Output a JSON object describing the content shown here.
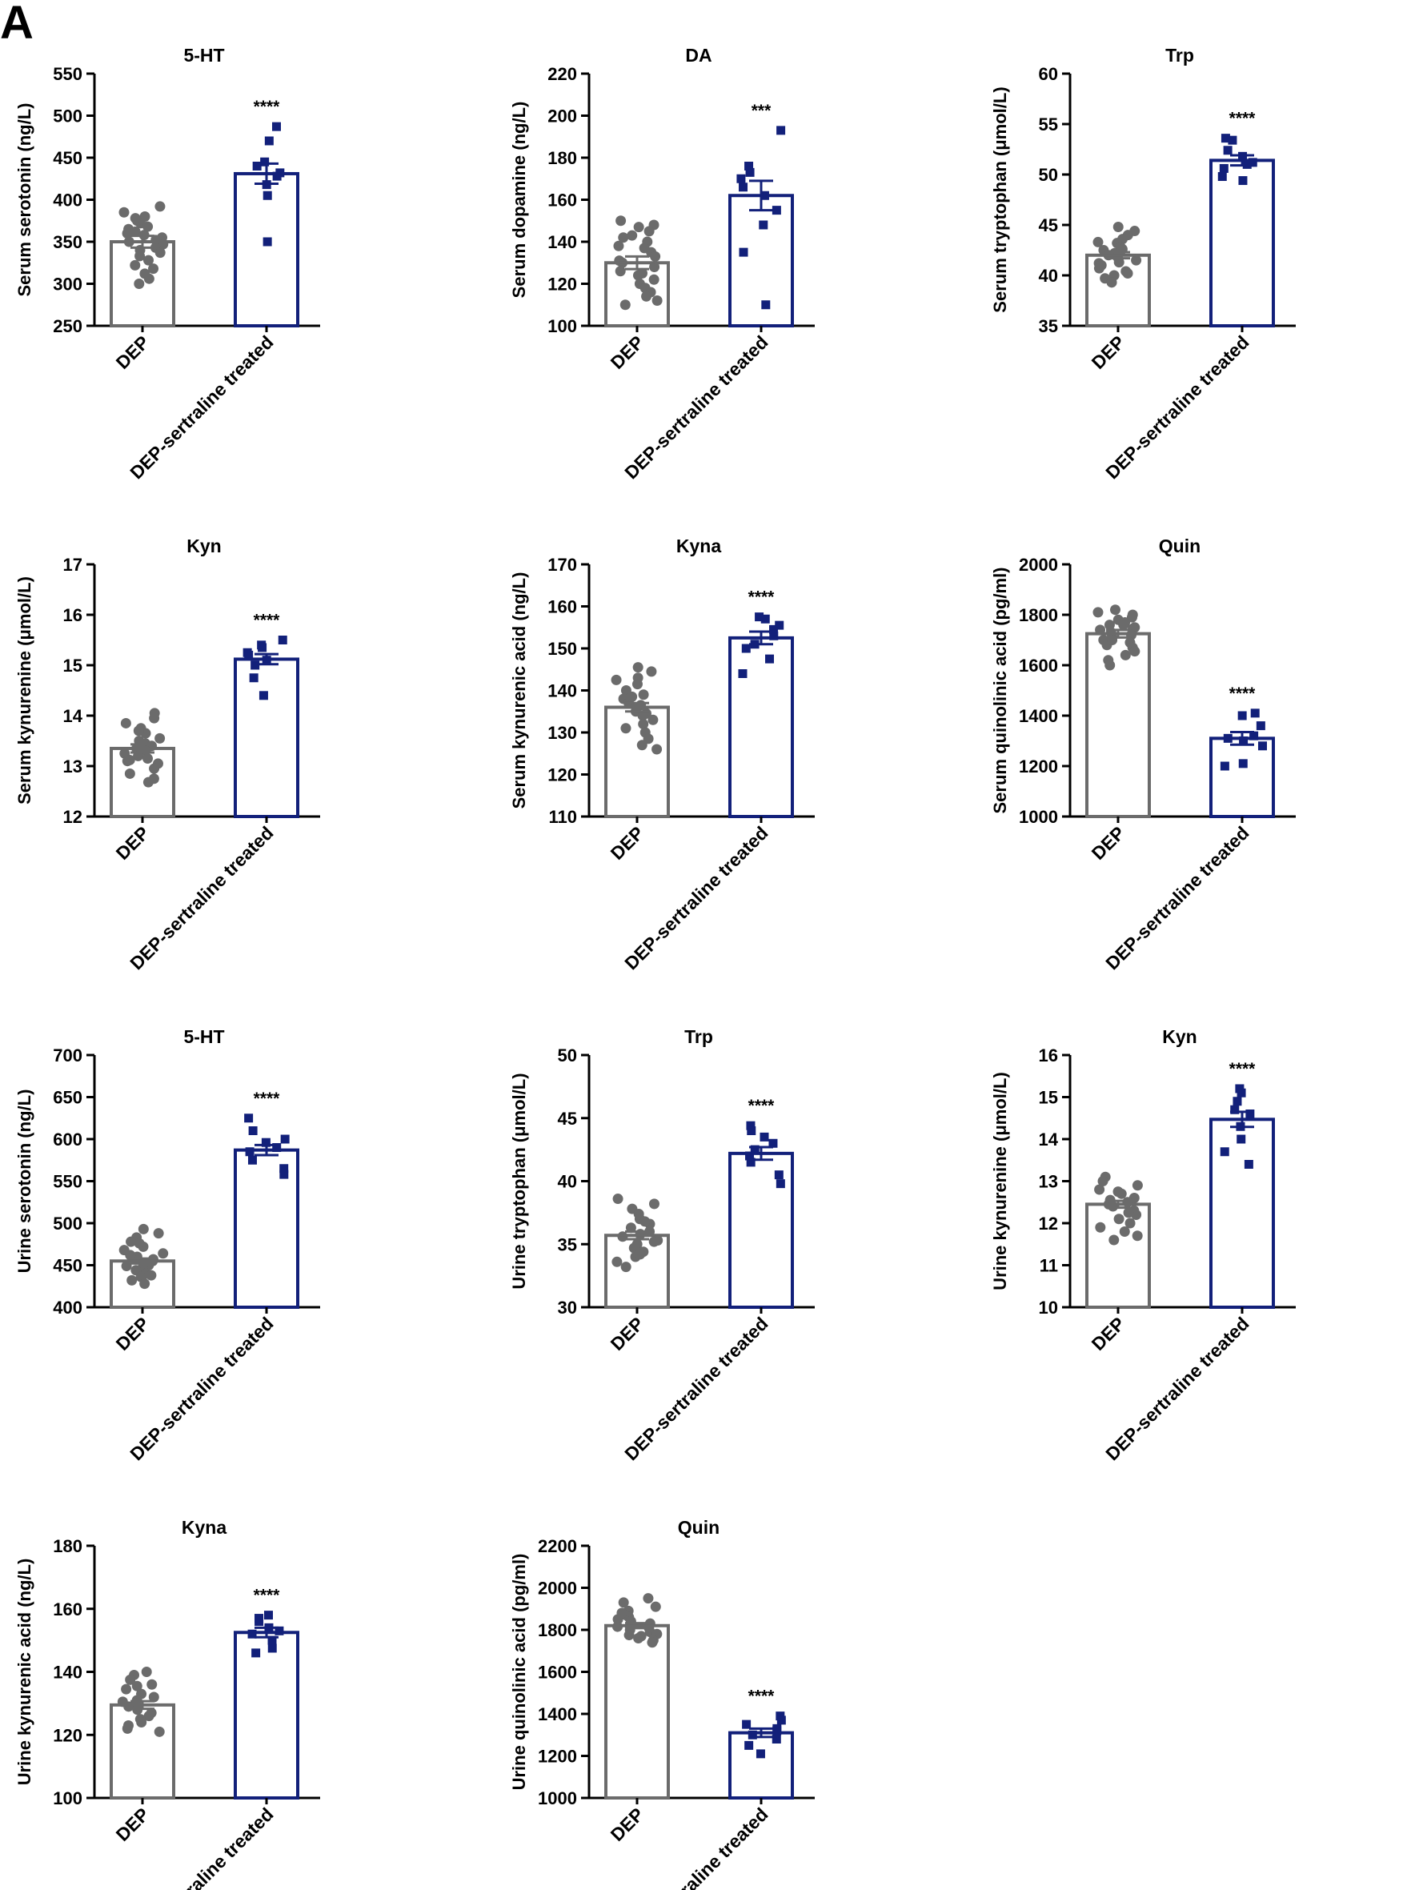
{
  "figure": {
    "panel_letter": "A",
    "colors": {
      "dep": "#6b6b6b",
      "treated": "#12207a",
      "axis": "#000000"
    }
  },
  "chart_data": [
    {
      "type": "bar",
      "title": "5-HT",
      "ylabel": "Serum serotonin (ng/L)",
      "categories": [
        "DEP",
        "DEP-sertraline treated"
      ],
      "ylim": [
        250,
        550
      ],
      "yticks": [
        250,
        300,
        350,
        400,
        450,
        500,
        550
      ],
      "means": [
        350,
        431
      ],
      "sem": [
        7,
        12
      ],
      "significance": "****",
      "points": [
        [
          392,
          385,
          380,
          375,
          372,
          368,
          365,
          362,
          358,
          355,
          352,
          350,
          347,
          343,
          340,
          337,
          333,
          328,
          322,
          318,
          312,
          306,
          300,
          360,
          378
        ],
        [
          487,
          470,
          445,
          440,
          432,
          428,
          418,
          405,
          350
        ]
      ]
    },
    {
      "type": "bar",
      "title": "DA",
      "ylabel": "Serum dopamine (ng/L)",
      "categories": [
        "DEP",
        "DEP-sertraline treated"
      ],
      "ylim": [
        100,
        220
      ],
      "yticks": [
        100,
        120,
        140,
        160,
        180,
        200,
        220
      ],
      "means": [
        130,
        162
      ],
      "sem": [
        3,
        7
      ],
      "significance": "***",
      "points": [
        [
          150,
          148,
          147,
          145,
          143,
          140,
          138,
          135,
          133,
          130,
          128,
          126,
          124,
          122,
          120,
          118,
          116,
          114,
          112,
          110,
          137,
          142,
          131,
          125
        ],
        [
          193,
          176,
          173,
          170,
          166,
          162,
          155,
          148,
          135,
          110
        ]
      ]
    },
    {
      "type": "bar",
      "title": "Trp",
      "ylabel": "Serum tryptophan (μmol/L)",
      "categories": [
        "DEP",
        "DEP-sertraline treated"
      ],
      "ylim": [
        35,
        60
      ],
      "yticks": [
        35,
        40,
        45,
        50,
        55,
        60
      ],
      "means": [
        42,
        51.4
      ],
      "sem": [
        0.3,
        0.5
      ],
      "significance": "****",
      "points": [
        [
          44.8,
          44.4,
          44,
          43.6,
          43.2,
          42.8,
          42.5,
          42.2,
          42,
          41.8,
          41.5,
          41.2,
          41,
          40.7,
          40.4,
          40,
          39.7,
          39.3,
          43.3,
          42.6,
          41.3,
          40.2
        ],
        [
          53.6,
          53.4,
          52.4,
          51.8,
          51.2,
          51,
          50.6,
          49.8,
          49.4
        ]
      ]
    },
    {
      "type": "bar",
      "title": "Kyn",
      "ylabel": "Serum kynurenine (μmol/L)",
      "categories": [
        "DEP",
        "DEP-sertraline treated"
      ],
      "ylim": [
        12,
        17
      ],
      "yticks": [
        12,
        13,
        14,
        15,
        16,
        17
      ],
      "means": [
        13.35,
        15.12
      ],
      "sem": [
        0.08,
        0.1
      ],
      "significance": "****",
      "points": [
        [
          14.05,
          13.95,
          13.85,
          13.75,
          13.65,
          13.55,
          13.5,
          13.45,
          13.4,
          13.35,
          13.3,
          13.25,
          13.2,
          13.15,
          13.1,
          13.05,
          12.95,
          12.85,
          12.75,
          12.68,
          13.7,
          13.12
        ],
        [
          15.5,
          15.4,
          15.35,
          15.25,
          15.2,
          15.1,
          15.0,
          14.75,
          14.4
        ]
      ]
    },
    {
      "type": "bar",
      "title": "Kyna",
      "ylabel": "Serum kynurenic acid (ng/L)",
      "categories": [
        "DEP",
        "DEP-sertraline treated"
      ],
      "ylim": [
        110,
        170
      ],
      "yticks": [
        110,
        120,
        130,
        140,
        150,
        160,
        170
      ],
      "means": [
        136,
        152.5
      ],
      "sem": [
        1,
        1.5
      ],
      "significance": "****",
      "points": [
        [
          145.5,
          144.5,
          143,
          141.5,
          140,
          139,
          138,
          137,
          136.5,
          136,
          135,
          134.5,
          134,
          133,
          132,
          131,
          130,
          128.5,
          127,
          126,
          142.5,
          138.5
        ],
        [
          157.5,
          157,
          155.5,
          154.5,
          153,
          151,
          150,
          147.5,
          144
        ]
      ]
    },
    {
      "type": "bar",
      "title": "Quin",
      "ylabel": "Serum quinolinic acid (pg/ml)",
      "categories": [
        "DEP",
        "DEP-sertraline treated"
      ],
      "ylim": [
        1000,
        2000
      ],
      "yticks": [
        1000,
        1200,
        1400,
        1600,
        1800,
        2000
      ],
      "means": [
        1725,
        1310
      ],
      "sem": [
        15,
        25
      ],
      "significance": "****",
      "points": [
        [
          1820,
          1810,
          1800,
          1790,
          1780,
          1770,
          1760,
          1750,
          1745,
          1740,
          1730,
          1720,
          1710,
          1700,
          1690,
          1680,
          1670,
          1655,
          1640,
          1620,
          1600,
          1760,
          1700
        ],
        [
          1410,
          1400,
          1360,
          1320,
          1310,
          1300,
          1280,
          1210,
          1200
        ]
      ]
    },
    {
      "type": "bar",
      "title": "5-HT",
      "ylabel": "Urine serotonin (ng/L)",
      "categories": [
        "DEP",
        "DEP-sertraline treated"
      ],
      "ylim": [
        400,
        700
      ],
      "yticks": [
        400,
        450,
        500,
        550,
        600,
        650,
        700
      ],
      "means": [
        455,
        587
      ],
      "sem": [
        3,
        6
      ],
      "significance": "****",
      "points": [
        [
          493,
          488,
          483,
          478,
          472,
          468,
          464,
          460,
          457,
          455,
          452,
          450,
          447,
          444,
          440,
          436,
          432,
          428,
          476,
          462,
          449,
          438
        ],
        [
          625,
          610,
          600,
          596,
          590,
          585,
          575,
          565,
          558
        ]
      ]
    },
    {
      "type": "bar",
      "title": "Trp",
      "ylabel": "Urine tryptophan (μmol/L)",
      "categories": [
        "DEP",
        "DEP-sertraline treated"
      ],
      "ylim": [
        30,
        50
      ],
      "yticks": [
        30,
        35,
        40,
        45,
        50
      ],
      "means": [
        35.7,
        42.2
      ],
      "sem": [
        0.3,
        0.5
      ],
      "significance": "****",
      "points": [
        [
          38.6,
          38.2,
          37.8,
          37.4,
          37,
          36.6,
          36.3,
          36,
          35.8,
          35.6,
          35.3,
          35,
          34.7,
          34.4,
          34,
          33.6,
          33.2,
          36.8,
          35.2,
          34.2
        ],
        [
          44.4,
          44,
          43.5,
          43,
          42.5,
          42,
          41.5,
          40.5,
          39.8
        ]
      ]
    },
    {
      "type": "bar",
      "title": "Kyn",
      "ylabel": "Urine kynurenine (μmol/L)",
      "categories": [
        "DEP",
        "DEP-sertraline treated"
      ],
      "ylim": [
        10,
        16
      ],
      "yticks": [
        10,
        11,
        12,
        13,
        14,
        15,
        16
      ],
      "means": [
        12.45,
        14.47
      ],
      "sem": [
        0.08,
        0.18
      ],
      "significance": "****",
      "points": [
        [
          13.1,
          13,
          12.9,
          12.8,
          12.7,
          12.6,
          12.55,
          12.5,
          12.45,
          12.4,
          12.3,
          12.2,
          12.1,
          12,
          11.9,
          11.8,
          11.6,
          12.75,
          12.25,
          11.7
        ],
        [
          15.2,
          15.1,
          14.9,
          14.7,
          14.6,
          14.3,
          14.0,
          13.7,
          13.4
        ]
      ]
    },
    {
      "type": "bar",
      "title": "Kyna",
      "ylabel": "Urine kynurenic acid (ng/L)",
      "categories": [
        "DEP",
        "DEP-sertraline treated"
      ],
      "ylim": [
        100,
        180
      ],
      "yticks": [
        100,
        120,
        140,
        160,
        180
      ],
      "means": [
        129.5,
        152.5
      ],
      "sem": [
        1.2,
        1.5
      ],
      "significance": "****",
      "points": [
        [
          140,
          139,
          137.5,
          136,
          134.5,
          133,
          132,
          131,
          130,
          129,
          128,
          127,
          126,
          125,
          124,
          123,
          122,
          121,
          135.5,
          130.5
        ],
        [
          158,
          157,
          156,
          154,
          153,
          152,
          150,
          147.5,
          146
        ]
      ]
    },
    {
      "type": "bar",
      "title": "Quin",
      "ylabel": "Urine quinolinic acid (pg/ml)",
      "categories": [
        "DEP",
        "DEP-sertraline treated"
      ],
      "ylim": [
        1000,
        2200
      ],
      "yticks": [
        1000,
        1200,
        1400,
        1600,
        1800,
        2000,
        2200
      ],
      "means": [
        1820,
        1310
      ],
      "sem": [
        12,
        20
      ],
      "significance": "****",
      "points": [
        [
          1950,
          1930,
          1910,
          1890,
          1870,
          1860,
          1850,
          1840,
          1830,
          1820,
          1810,
          1800,
          1790,
          1780,
          1770,
          1760,
          1750,
          1740,
          1880,
          1815,
          1775
        ],
        [
          1390,
          1370,
          1350,
          1330,
          1320,
          1300,
          1280,
          1250,
          1210
        ]
      ]
    }
  ]
}
